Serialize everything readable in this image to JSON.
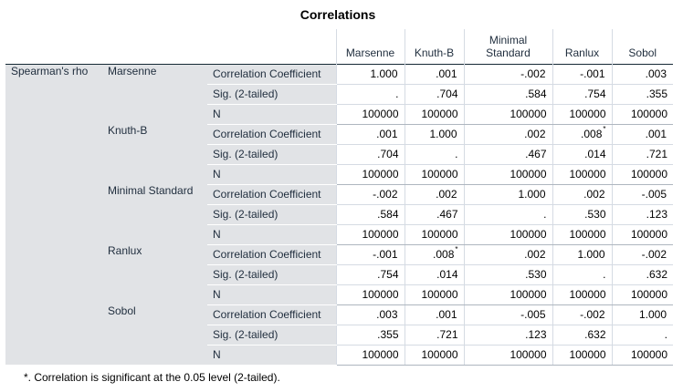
{
  "title": "Correlations",
  "header_rows": [
    "Marsenne",
    "Knuth-B",
    "Minimal\nStandard",
    "Ranlux",
    "Sobol"
  ],
  "columns": [
    "Marsenne",
    "Knuth-B",
    "Minimal Standard",
    "Ranlux",
    "Sobol"
  ],
  "row_group_label": "Spearman's rho",
  "stat_labels": [
    "Correlation Coefficient",
    "Sig. (2-tailed)",
    "N"
  ],
  "rows": [
    {
      "name": "Marsenne",
      "corr": [
        [
          "1.000",
          ""
        ],
        [
          ".001",
          ""
        ],
        [
          "-.002",
          ""
        ],
        [
          "-.001",
          ""
        ],
        [
          ".003",
          ""
        ]
      ],
      "sig": [
        ".",
        ".704",
        ".584",
        ".754",
        ".355"
      ],
      "n": [
        "100000",
        "100000",
        "100000",
        "100000",
        "100000"
      ]
    },
    {
      "name": "Knuth-B",
      "corr": [
        [
          ".001",
          ""
        ],
        [
          "1.000",
          ""
        ],
        [
          ".002",
          ""
        ],
        [
          ".008",
          "*"
        ],
        [
          ".001",
          ""
        ]
      ],
      "sig": [
        ".704",
        ".",
        ".467",
        ".014",
        ".721"
      ],
      "n": [
        "100000",
        "100000",
        "100000",
        "100000",
        "100000"
      ]
    },
    {
      "name": "Minimal Standard",
      "corr": [
        [
          "-.002",
          ""
        ],
        [
          ".002",
          ""
        ],
        [
          "1.000",
          ""
        ],
        [
          ".002",
          ""
        ],
        [
          "-.005",
          ""
        ]
      ],
      "sig": [
        ".584",
        ".467",
        ".",
        ".530",
        ".123"
      ],
      "n": [
        "100000",
        "100000",
        "100000",
        "100000",
        "100000"
      ]
    },
    {
      "name": "Ranlux",
      "corr": [
        [
          "-.001",
          ""
        ],
        [
          ".008",
          "*"
        ],
        [
          ".002",
          ""
        ],
        [
          "1.000",
          ""
        ],
        [
          "-.002",
          ""
        ]
      ],
      "sig": [
        ".754",
        ".014",
        ".530",
        ".",
        ".632"
      ],
      "n": [
        "100000",
        "100000",
        "100000",
        "100000",
        "100000"
      ]
    },
    {
      "name": "Sobol",
      "corr": [
        [
          ".003",
          ""
        ],
        [
          ".001",
          ""
        ],
        [
          "-.005",
          ""
        ],
        [
          "-.002",
          ""
        ],
        [
          "1.000",
          ""
        ]
      ],
      "sig": [
        ".355",
        ".721",
        ".123",
        ".632",
        "."
      ],
      "n": [
        "100000",
        "100000",
        "100000",
        "100000",
        "100000"
      ]
    }
  ],
  "footnote": "*. Correlation is significant at the 0.05 level (2-tailed).",
  "colors": {
    "label_bg": "#e1e3e6",
    "header_rule": "#152935",
    "grid": "#d5dbe3"
  }
}
